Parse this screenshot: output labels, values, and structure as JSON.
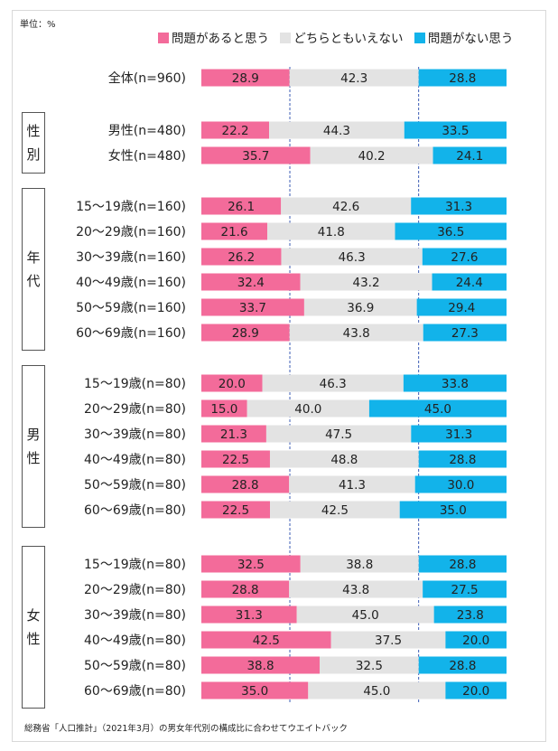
{
  "unit_label": "単位：%",
  "note": "総務省「人口推計」（2021年3月）の男女年代別の構成比に合わせてウエイトバック",
  "colors": {
    "agree": "#f36b9a",
    "neutral": "#e3e3e3",
    "disagree": "#12b3ea",
    "divider": "#3b5bb5"
  },
  "groups": [
    {
      "label": "性別",
      "chars": [
        "性",
        "別"
      ],
      "rows": [
        1,
        2
      ]
    },
    {
      "label": "年代",
      "chars": [
        "年",
        "代"
      ],
      "rows": [
        3,
        8
      ]
    },
    {
      "label": "男性",
      "chars": [
        "男",
        "性"
      ],
      "rows": [
        9,
        14
      ]
    },
    {
      "label": "女性",
      "chars": [
        "女",
        "性"
      ],
      "rows": [
        15,
        20
      ]
    }
  ],
  "chart_data": {
    "type": "bar",
    "orientation": "horizontal",
    "stacked": true,
    "percent": true,
    "legend_position": "top",
    "xlim": [
      0,
      100
    ],
    "categories": [
      "全体(n=960)",
      "男性(n=480)",
      "女性(n=480)",
      "15～19歳(n=160)",
      "20～29歳(n=160)",
      "30～39歳(n=160)",
      "40～49歳(n=160)",
      "50～59歳(n=160)",
      "60～69歳(n=160)",
      "15～19歳(n=80)",
      "20～29歳(n=80)",
      "30～39歳(n=80)",
      "40～49歳(n=80)",
      "50～59歳(n=80)",
      "60～69歳(n=80)",
      "15～19歳(n=80)",
      "20～29歳(n=80)",
      "30～39歳(n=80)",
      "40～49歳(n=80)",
      "50～59歳(n=80)",
      "60～69歳(n=80)"
    ],
    "series": [
      {
        "name": "問題があると思う",
        "color": "#f36b9a",
        "values": [
          28.9,
          22.2,
          35.7,
          26.1,
          21.6,
          26.2,
          32.4,
          33.7,
          28.9,
          20.0,
          15.0,
          21.3,
          22.5,
          28.8,
          22.5,
          32.5,
          28.8,
          31.3,
          42.5,
          38.8,
          35.0
        ],
        "labels": [
          "28.9",
          "22.2",
          "35.7",
          "26.1",
          "21.6",
          "26.2",
          "32.4",
          "33.7",
          "28.9",
          "20.0",
          "15.0",
          "21.3",
          "22.5",
          "28.8",
          "22.5",
          "32.5",
          "28.8",
          "31.3",
          "42.5",
          "38.8",
          "35.0"
        ]
      },
      {
        "name": "どちらともいえない",
        "color": "#e3e3e3",
        "values": [
          42.3,
          44.3,
          40.2,
          42.6,
          41.8,
          46.3,
          43.2,
          36.9,
          43.8,
          46.3,
          40.0,
          47.5,
          48.8,
          41.3,
          42.5,
          38.8,
          43.8,
          45.0,
          37.5,
          32.5,
          45.0
        ],
        "labels": [
          "42.3",
          "44.3",
          "40.2",
          "42.6",
          "41.8",
          "46.3",
          "43.2",
          "36.9",
          "43.8",
          "46.3",
          "40.0",
          "47.5",
          "48.8",
          "41.3",
          "42.5",
          "38.8",
          "43.8",
          "45.0",
          "37.5",
          "32.5",
          "45.0"
        ]
      },
      {
        "name": "問題がない思う",
        "color": "#12b3ea",
        "values": [
          28.8,
          33.5,
          24.1,
          31.3,
          36.5,
          27.6,
          24.4,
          29.4,
          27.3,
          33.8,
          45.0,
          31.3,
          28.8,
          30.0,
          35.0,
          28.8,
          27.5,
          23.8,
          20.0,
          28.8,
          20.0
        ],
        "labels": [
          "28.8",
          "33.5",
          "24.1",
          "31.3",
          "36.5",
          "27.6",
          "24.4",
          "29.4",
          "27.3",
          "33.8",
          "45.0",
          "31.3",
          "28.8",
          "30.0",
          "35.0",
          "28.8",
          "27.5",
          "23.8",
          "20.0",
          "28.8",
          "20.0"
        ]
      }
    ]
  }
}
